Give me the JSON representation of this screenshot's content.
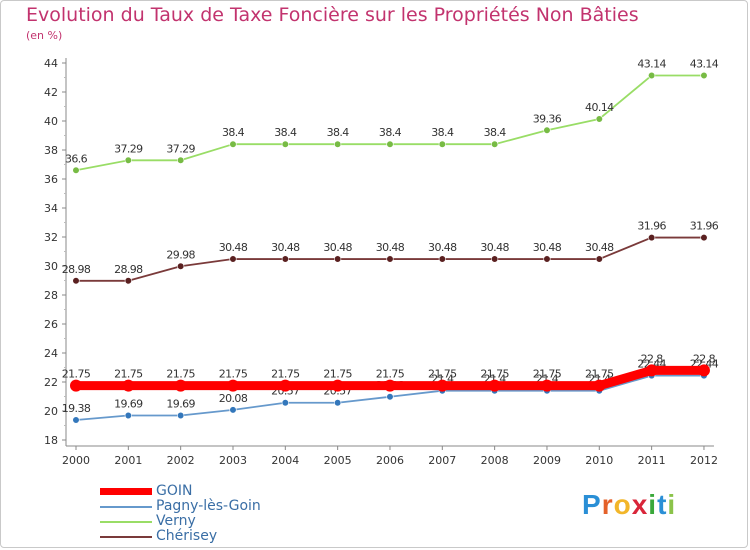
{
  "title": "Evolution du Taux de Taxe Foncière sur les Propriétés Non Bâties",
  "subtitle": "(en %)",
  "logo_letters": [
    {
      "ch": "P",
      "color": "#2a8fd6"
    },
    {
      "ch": "r",
      "color": "#e4612a"
    },
    {
      "ch": "o",
      "color": "#f2b62a"
    },
    {
      "ch": "x",
      "color": "#d9263a"
    },
    {
      "ch": "i",
      "color": "#3aa83a"
    },
    {
      "ch": "t",
      "color": "#2a8fd6"
    },
    {
      "ch": "i",
      "color": "#8bc34a"
    }
  ],
  "chart_data": {
    "type": "line",
    "x": [
      "2000",
      "2001",
      "2002",
      "2003",
      "2004",
      "2005",
      "2006",
      "2007",
      "2008",
      "2009",
      "2010",
      "2011",
      "2012"
    ],
    "ylim": [
      18,
      44
    ],
    "yticks": [
      18,
      20,
      22,
      24,
      26,
      28,
      30,
      32,
      34,
      36,
      38,
      40,
      42,
      44
    ],
    "grid": false,
    "legend_position": "bottom-left",
    "series": [
      {
        "name": "Verny",
        "color": "#99dd66",
        "marker": "#77bb44",
        "thick": false,
        "values": [
          36.6,
          37.29,
          37.29,
          38.4,
          38.4,
          38.4,
          38.4,
          38.4,
          38.4,
          39.36,
          40.14,
          43.14,
          43.14
        ],
        "labels": [
          "36.6",
          "37.29",
          "37.29",
          "38.4",
          "38.4",
          "38.4",
          "38.4",
          "38.4",
          "38.4",
          "39.36",
          "40.14",
          "43.14",
          "43.14"
        ]
      },
      {
        "name": "Chérisey",
        "color": "#7a3a3a",
        "marker": "#5a2020",
        "thick": false,
        "values": [
          28.98,
          28.98,
          29.98,
          30.48,
          30.48,
          30.48,
          30.48,
          30.48,
          30.48,
          30.48,
          30.48,
          31.96,
          31.96
        ],
        "labels": [
          "28.98",
          "28.98",
          "29.98",
          "30.48",
          "30.48",
          "30.48",
          "30.48",
          "30.48",
          "30.48",
          "30.48",
          "30.48",
          "31.96",
          "31.96"
        ]
      },
      {
        "name": "Pagny-lès-Goin",
        "color": "#6699cc",
        "marker": "#3377bb",
        "thick": false,
        "values": [
          19.38,
          19.69,
          19.69,
          20.08,
          20.57,
          20.57,
          20.98,
          21.4,
          21.4,
          21.4,
          21.4,
          22.44,
          22.44
        ],
        "labels": [
          "19.38",
          "19.69",
          "19.69",
          "20.08",
          "20.57",
          "20.57",
          "20.98",
          "21.4",
          "21.4",
          "21.4",
          "21.4",
          "22.44",
          "22.44"
        ]
      },
      {
        "name": "GOIN",
        "color": "#ff0000",
        "marker": "#ff0000",
        "thick": true,
        "values": [
          21.75,
          21.75,
          21.75,
          21.75,
          21.75,
          21.75,
          21.75,
          21.75,
          21.75,
          21.75,
          21.75,
          22.8,
          22.8
        ],
        "labels": [
          "21.75",
          "21.75",
          "21.75",
          "21.75",
          "21.75",
          "21.75",
          "21.75",
          "21.75",
          "21.75",
          "21.75",
          "21.75",
          "22.8",
          "22.8"
        ]
      }
    ],
    "legend": [
      {
        "name": "GOIN",
        "color": "#ff0000",
        "thick": true
      },
      {
        "name": "Pagny-lès-Goin",
        "color": "#6699cc",
        "thick": false
      },
      {
        "name": "Verny",
        "color": "#99dd66",
        "thick": false
      },
      {
        "name": "Chérisey",
        "color": "#7a3a3a",
        "thick": false
      }
    ]
  }
}
